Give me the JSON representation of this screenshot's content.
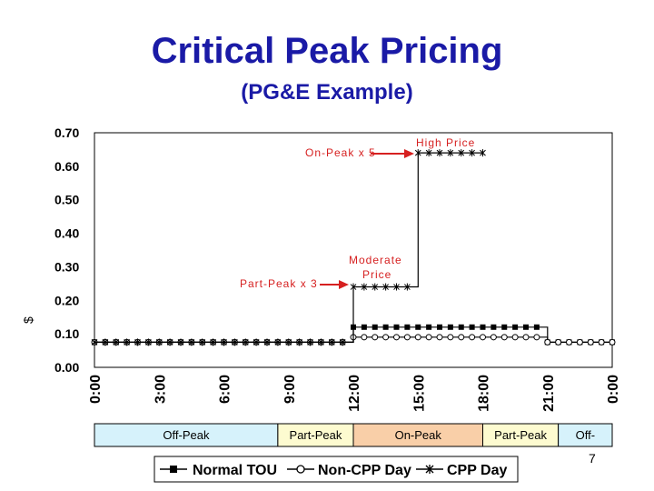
{
  "slide": {
    "title": "Critical Peak Pricing",
    "subtitle": "(PG&E Example)",
    "page_number": "7"
  },
  "colors": {
    "title": "#1a1aa6",
    "annotation": "#d62020",
    "line": "#000000"
  },
  "chart_data": {
    "type": "line",
    "ylabel": "$",
    "ylim": [
      0,
      0.7
    ],
    "yticks": [
      "0.70",
      "0.60",
      "0.50",
      "0.40",
      "0.30",
      "0.20",
      "0.10",
      "0.00"
    ],
    "ytick_values": [
      0.7,
      0.6,
      0.5,
      0.4,
      0.3,
      0.2,
      0.1,
      0
    ],
    "xticks": [
      {
        "pos": 0,
        "label": "0:00"
      },
      {
        "pos": 3,
        "label": "3:00"
      },
      {
        "pos": 6,
        "label": "6:00"
      },
      {
        "pos": 9,
        "label": "9:00"
      },
      {
        "pos": 12,
        "label": "12:00"
      },
      {
        "pos": 15,
        "label": "15:00"
      },
      {
        "pos": 18,
        "label": "18:00"
      },
      {
        "pos": 21,
        "label": "21:00"
      },
      {
        "pos": 24,
        "label": "0:00"
      }
    ],
    "xlim": [
      0,
      24
    ],
    "series": [
      {
        "name": "Normal TOU",
        "marker": "square",
        "points": [
          [
            0,
            0.075
          ],
          [
            12,
            0.075
          ],
          [
            12,
            0.12
          ],
          [
            21,
            0.12
          ],
          [
            21,
            0.075
          ],
          [
            24,
            0.075
          ]
        ]
      },
      {
        "name": "Non-CPP Day",
        "marker": "circle",
        "points": [
          [
            0,
            0.075
          ],
          [
            12,
            0.075
          ],
          [
            12,
            0.09
          ],
          [
            21,
            0.09
          ],
          [
            21,
            0.075
          ],
          [
            24,
            0.075
          ]
        ]
      },
      {
        "name": "CPP Day",
        "marker": "star",
        "points": [
          [
            0,
            0.075
          ],
          [
            12,
            0.075
          ],
          [
            12,
            0.24
          ],
          [
            15,
            0.24
          ],
          [
            15,
            0.64
          ],
          [
            18,
            0.64
          ]
        ]
      }
    ],
    "annotations": {
      "on_peak": "On-Peak x 5",
      "high_price": "High Price",
      "moderate": "Moderate",
      "price": "Price",
      "part_peak": "Part-Peak x 3"
    },
    "periods": [
      {
        "start": 0,
        "end": 8.5,
        "label": "Off-Peak",
        "color": "#d6f2fb"
      },
      {
        "start": 8.5,
        "end": 12,
        "label": "Part-Peak",
        "color": "#fdfbd0"
      },
      {
        "start": 12,
        "end": 18,
        "label": "On-Peak",
        "color": "#f9cfa8"
      },
      {
        "start": 18,
        "end": 21.5,
        "label": "Part-Peak",
        "color": "#fdfbd0"
      },
      {
        "start": 21.5,
        "end": 24,
        "label": "Off-",
        "color": "#d6f2fb"
      }
    ],
    "legend": [
      "Normal TOU",
      "Non-CPP Day",
      "CPP Day"
    ]
  }
}
